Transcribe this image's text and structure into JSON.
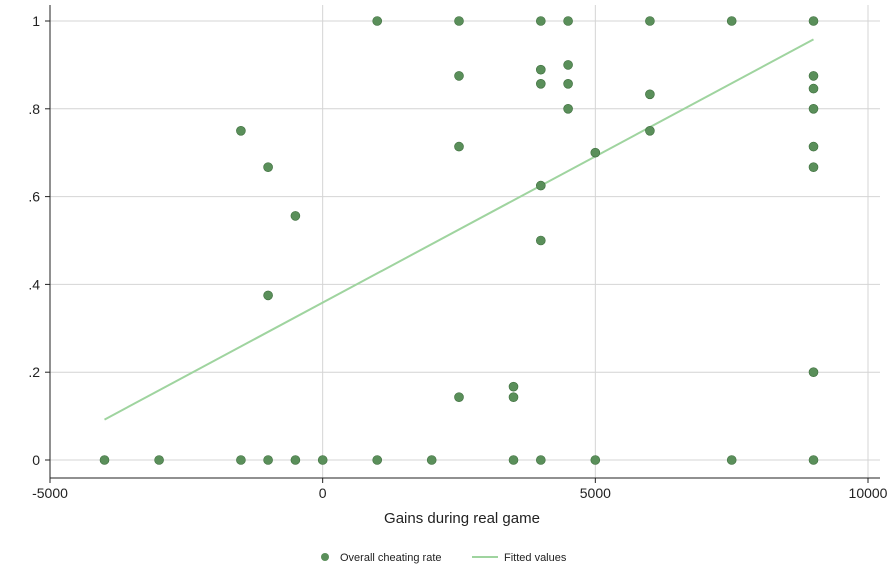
{
  "chart_data": {
    "type": "scatter",
    "xlabel": "Gains during real game",
    "ylabel": "",
    "xlim": [
      -5000,
      10000
    ],
    "ylim": [
      0,
      1
    ],
    "x_ticks": [
      -5000,
      0,
      5000,
      10000
    ],
    "x_tick_labels": [
      "-5000",
      "0",
      "5000",
      "10000"
    ],
    "y_ticks": [
      0,
      0.2,
      0.4,
      0.6,
      0.8,
      1
    ],
    "y_tick_labels": [
      "0",
      ".2",
      ".4",
      ".6",
      ".8",
      "1"
    ],
    "grid": true,
    "legend_position": "bottom",
    "series": [
      {
        "name": "Overall cheating rate",
        "type": "scatter",
        "color": "#5a8f5a",
        "points": [
          [
            -4000,
            0
          ],
          [
            -3000,
            0
          ],
          [
            -1500,
            0
          ],
          [
            -1000,
            0
          ],
          [
            -500,
            0
          ],
          [
            0,
            0
          ],
          [
            1000,
            0
          ],
          [
            2000,
            0
          ],
          [
            3500,
            0
          ],
          [
            4000,
            0
          ],
          [
            5000,
            0
          ],
          [
            7500,
            0
          ],
          [
            9000,
            0
          ],
          [
            -1500,
            0.75
          ],
          [
            -1000,
            0.667
          ],
          [
            -500,
            0.556
          ],
          [
            -1000,
            0.375
          ],
          [
            1000,
            1
          ],
          [
            2500,
            1
          ],
          [
            4000,
            1
          ],
          [
            4500,
            1
          ],
          [
            6000,
            1
          ],
          [
            7500,
            1
          ],
          [
            9000,
            1
          ],
          [
            2500,
            0.875
          ],
          [
            2500,
            0.714
          ],
          [
            2500,
            0.143
          ],
          [
            3500,
            0.167
          ],
          [
            3500,
            0.143
          ],
          [
            4000,
            0.889
          ],
          [
            4000,
            0.857
          ],
          [
            4000,
            0.625
          ],
          [
            4000,
            0.5
          ],
          [
            4500,
            0.9
          ],
          [
            4500,
            0.857
          ],
          [
            4500,
            0.8
          ],
          [
            5000,
            0.7
          ],
          [
            6000,
            0.833
          ],
          [
            6000,
            0.75
          ],
          [
            9000,
            0.875
          ],
          [
            9000,
            0.846
          ],
          [
            9000,
            0.8
          ],
          [
            9000,
            0.714
          ],
          [
            9000,
            0.667
          ],
          [
            9000,
            0.2
          ]
        ]
      },
      {
        "name": "Fitted values",
        "type": "line",
        "color": "#9fd49f",
        "points": [
          [
            -4000,
            0.092
          ],
          [
            9000,
            0.958
          ]
        ]
      }
    ]
  }
}
